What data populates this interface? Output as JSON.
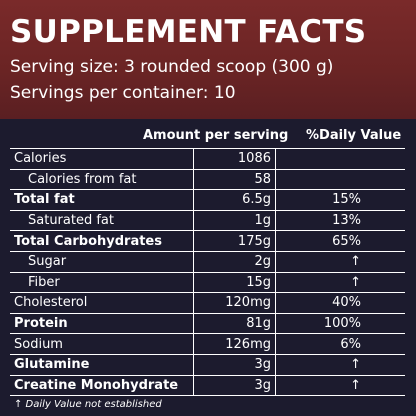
{
  "header": {
    "title": "SUPPLEMENT FACTS",
    "serving_size": "Serving size: 3 rounded scoop (300 g)",
    "servings_per_container": "Servings per container: 10"
  },
  "columns": {
    "amount": "Amount per serving",
    "daily_value": "%Daily Value"
  },
  "rows": [
    {
      "label": "Calories",
      "amount": "1086",
      "dv": ""
    },
    {
      "label": "Calories from fat",
      "amount": "58",
      "dv": ""
    },
    {
      "label": "Total fat",
      "amount": "6.5g",
      "dv": "15%"
    },
    {
      "label": "Saturated fat",
      "amount": "1g",
      "dv": "13%"
    },
    {
      "label": "Total Carbohydrates",
      "amount": "175g",
      "dv": "65%"
    },
    {
      "label": "Sugar",
      "amount": "2g",
      "dv": "↑"
    },
    {
      "label": "Fiber",
      "amount": "15g",
      "dv": "↑"
    },
    {
      "label": "Cholesterol",
      "amount": "120mg",
      "dv": "40%"
    },
    {
      "label": "Protein",
      "amount": "81g",
      "dv": "100%"
    },
    {
      "label": "Sodium",
      "amount": "126mg",
      "dv": "6%"
    },
    {
      "label": "Glutamine",
      "amount": "3g",
      "dv": "↑"
    },
    {
      "label": "Creatine Monohydrate",
      "amount": "3g",
      "dv": "↑"
    }
  ],
  "footnote": "↑  Daily Value not established",
  "colors": {
    "header_bg": "#6a2424",
    "panel_bg": "#1c1b2e",
    "text": "#ffffff"
  }
}
